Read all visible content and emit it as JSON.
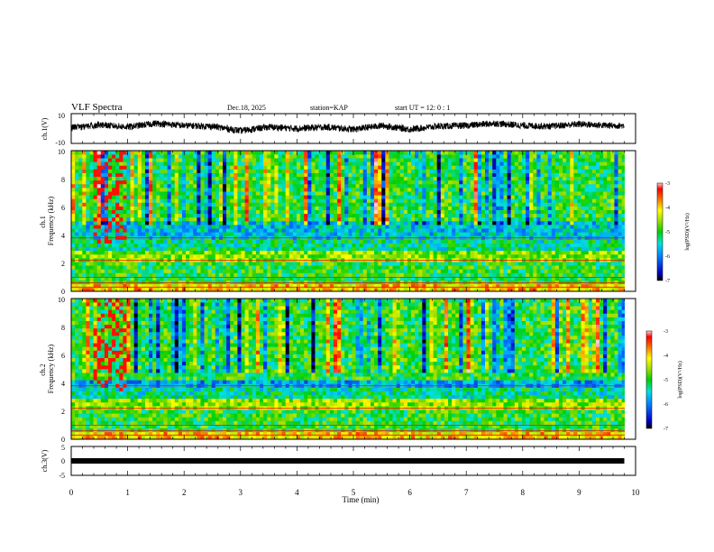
{
  "header": {
    "title": "VLF Spectra",
    "date": "Dec.18, 2025",
    "station": "station=KAP",
    "start": "start  UT  =   12: 0  : 1"
  },
  "chart_data": [
    {
      "type": "line",
      "panel": "ch1-waveform",
      "ylabel": "ch.1(V)",
      "ylim": [
        -10,
        10
      ],
      "yticks": [
        "10",
        "-10"
      ],
      "x_unit": "min",
      "x": [
        0.0,
        0.5,
        1.0,
        1.5,
        2.0,
        2.5,
        3.0,
        3.5,
        4.0,
        4.5,
        5.0,
        5.5,
        6.0,
        6.5,
        7.0,
        7.5,
        8.0,
        8.5,
        9.0,
        9.5,
        9.8
      ],
      "values": [
        0.5,
        2.5,
        1.0,
        3.5,
        2.0,
        1.5,
        -1.5,
        1.0,
        0.0,
        1.0,
        -0.5,
        2.0,
        -0.5,
        1.5,
        2.0,
        3.5,
        2.0,
        1.5,
        3.0,
        2.0,
        2.0
      ]
    },
    {
      "type": "heatmap",
      "panel": "ch1-spectrogram",
      "ylabel": "ch.1\nFrequency  (kHz)",
      "ylim": [
        0,
        10
      ],
      "yticks": [
        "0",
        "2",
        "4",
        "6",
        "8",
        "10"
      ],
      "colorbar": {
        "label": "log(PSD)(V²/Hz)",
        "ticks": [
          "-3",
          "-4",
          "-5",
          "-6",
          "-7"
        ],
        "range": [
          -7,
          -3
        ]
      },
      "bands_khz": [
        {
          "f0": 0.0,
          "f1": 0.5,
          "level": -4.0
        },
        {
          "f0": 0.5,
          "f1": 2.0,
          "level": -5.0
        },
        {
          "f0": 2.0,
          "f1": 2.8,
          "level": -4.6
        },
        {
          "f0": 2.8,
          "f1": 3.6,
          "level": -5.3
        },
        {
          "f0": 3.6,
          "f1": 4.9,
          "level": -5.6
        },
        {
          "f0": 4.9,
          "f1": 10.0,
          "level": -5.0
        }
      ]
    },
    {
      "type": "heatmap",
      "panel": "ch2-spectrogram",
      "ylabel": "ch.2\nFrequency  (kHz)",
      "ylim": [
        0,
        10
      ],
      "yticks": [
        "0",
        "2",
        "4",
        "6",
        "8",
        "10"
      ],
      "colorbar": {
        "label": "log(PSD)(V²/Hz)",
        "ticks": [
          "-3",
          "-4",
          "-5",
          "-6",
          "-7"
        ],
        "range": [
          -7,
          -3
        ]
      },
      "bands_khz": [
        {
          "f0": 0.0,
          "f1": 0.5,
          "level": -4.0
        },
        {
          "f0": 0.5,
          "f1": 2.0,
          "level": -5.0
        },
        {
          "f0": 2.0,
          "f1": 3.0,
          "level": -4.5
        },
        {
          "f0": 3.0,
          "f1": 3.6,
          "level": -5.3
        },
        {
          "f0": 3.6,
          "f1": 4.2,
          "level": -5.8
        },
        {
          "f0": 4.2,
          "f1": 10.0,
          "level": -5.0
        }
      ]
    },
    {
      "type": "line",
      "panel": "ch3-waveform",
      "ylabel": "ch.3(V)",
      "ylim": [
        -5,
        5
      ],
      "yticks": [
        "5",
        "0",
        "-5"
      ],
      "x": [
        0.0,
        9.8
      ],
      "values": [
        0.0,
        0.0
      ]
    }
  ],
  "xaxis": {
    "label": "Time  (min)",
    "ticks": [
      "0",
      "1",
      "2",
      "3",
      "4",
      "5",
      "6",
      "7",
      "8",
      "9",
      "10"
    ],
    "range": [
      0,
      10
    ]
  }
}
